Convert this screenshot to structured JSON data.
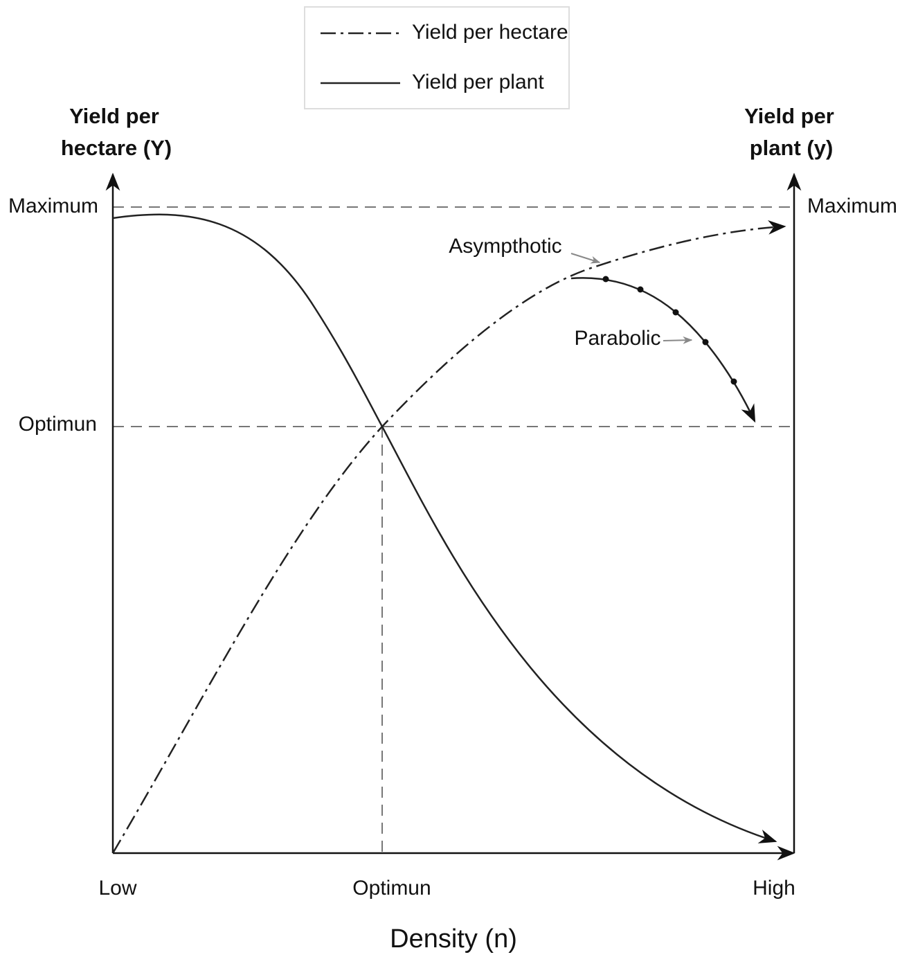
{
  "legend": {
    "items": [
      "Yield per hectare",
      "Yield per plant"
    ]
  },
  "left_axis": {
    "title": [
      "Yield per",
      "hectare (Y)"
    ],
    "ticks": [
      "Maximum",
      "Optimun"
    ]
  },
  "right_axis": {
    "title": [
      "Yield per",
      "plant (y)"
    ],
    "ticks": [
      "Maximum"
    ]
  },
  "x_axis": {
    "ticks": [
      "Low",
      "Optimun",
      "High"
    ],
    "title": "Density (n)"
  },
  "annotations": [
    "Asympthotic",
    "Parabolic"
  ]
}
